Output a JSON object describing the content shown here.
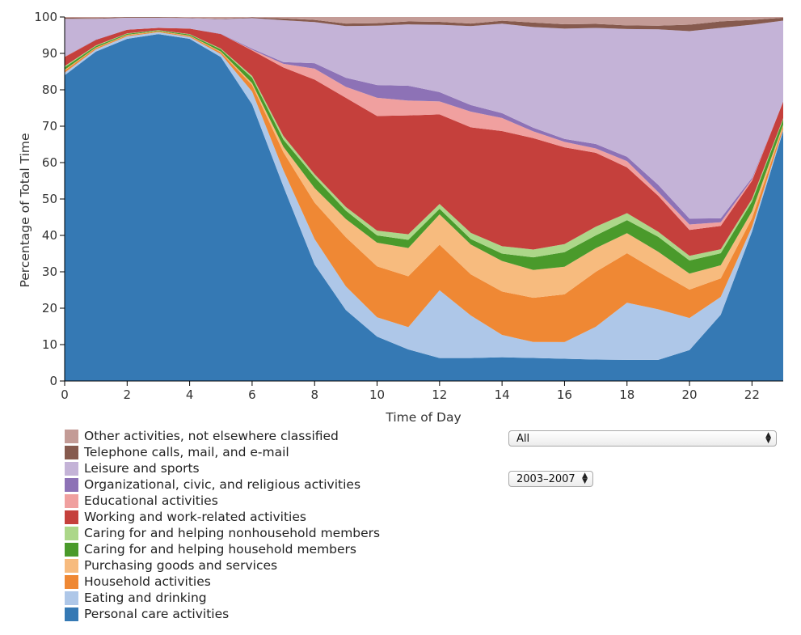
{
  "chart_data": {
    "type": "area",
    "stacked": true,
    "normalized": true,
    "xlabel": "Time of Day",
    "ylabel": "Percentage of Total Time",
    "xlim": [
      0,
      23
    ],
    "ylim": [
      0,
      100
    ],
    "x": [
      0,
      1,
      2,
      3,
      4,
      5,
      6,
      7,
      8,
      9,
      10,
      11,
      12,
      13,
      14,
      15,
      16,
      17,
      18,
      19,
      20,
      21,
      22,
      23
    ],
    "xticks": [
      "0",
      "2",
      "4",
      "6",
      "8",
      "10",
      "12",
      "14",
      "16",
      "18",
      "20",
      "22"
    ],
    "yticks": [
      "0",
      "10",
      "20",
      "30",
      "40",
      "50",
      "60",
      "70",
      "80",
      "90",
      "100"
    ],
    "series": [
      {
        "name": "Personal care activities",
        "color": "#3579b4",
        "values": [
          84,
          90.5,
          94,
          95.3,
          94,
          89,
          76,
          54,
          32,
          19.5,
          12.2,
          8.5,
          6.2,
          6.3,
          6.4,
          6.2,
          6.1,
          5.9,
          5.8,
          5.8,
          8.5,
          18.2,
          41,
          68
        ]
      },
      {
        "name": "Eating and drinking",
        "color": "#aec7e8",
        "values": [
          0.7,
          0.6,
          0.7,
          0.5,
          0.5,
          0.8,
          3.5,
          4.5,
          7,
          6.5,
          5.3,
          6,
          18.3,
          11.7,
          6,
          4.3,
          4.6,
          9,
          15.7,
          13.9,
          8.8,
          4.9,
          1.3,
          0.5
        ]
      },
      {
        "name": "Household activities",
        "color": "#ef8834",
        "values": [
          0.6,
          0.4,
          0.3,
          0.2,
          0.3,
          0.5,
          1.8,
          5,
          10,
          13.5,
          14,
          13.7,
          12.3,
          11.3,
          11.7,
          11.9,
          13.1,
          15.1,
          13.6,
          10.3,
          7.8,
          5.1,
          2.4,
          0.7
        ]
      },
      {
        "name": "Purchasing goods and services",
        "color": "#f7bb7e",
        "values": [
          0.2,
          0.1,
          0.1,
          0.1,
          0.1,
          0.2,
          0.5,
          1.5,
          4,
          5,
          6.5,
          7.6,
          8.2,
          8.2,
          8.2,
          7.5,
          7.6,
          6.5,
          5.5,
          5.5,
          4.4,
          3.6,
          1.9,
          0.5
        ]
      },
      {
        "name": "Caring for and helping household members",
        "color": "#4a9a2b",
        "values": [
          0.7,
          0.4,
          0.3,
          0.2,
          0.3,
          0.6,
          1.5,
          2,
          3,
          2.3,
          2,
          2.2,
          1.5,
          1.5,
          2,
          3.4,
          4,
          3.5,
          3.6,
          4.1,
          3.6,
          3.3,
          2.7,
          1.5
        ]
      },
      {
        "name": "Caring for and helping nonhousehold members",
        "color": "#acd789",
        "values": [
          0.3,
          0.2,
          0.1,
          0.1,
          0.1,
          0.2,
          0.5,
          1,
          0.8,
          1,
          1.3,
          1.5,
          1.3,
          1.7,
          2,
          2.1,
          2.2,
          2.4,
          1.9,
          1.4,
          1.3,
          1.1,
          0.7,
          0.3
        ]
      },
      {
        "name": "Working and work-related activities",
        "color": "#c5403c",
        "values": [
          2.5,
          1.5,
          1,
          0.6,
          1.5,
          4,
          7,
          19,
          26,
          30,
          31.5,
          32,
          24.2,
          29,
          31,
          30,
          26.6,
          20.3,
          12.6,
          9.9,
          7.1,
          6.4,
          5,
          4.5
        ]
      },
      {
        "name": "Educational activities",
        "color": "#f0a09f",
        "values": [
          0.1,
          0,
          0,
          0,
          0,
          0,
          0.2,
          1,
          3,
          3,
          5,
          4,
          3.5,
          4.3,
          3.5,
          1.8,
          1.5,
          1.2,
          1.7,
          1,
          1.5,
          1,
          0.4,
          0
        ]
      },
      {
        "name": "Organizational, civic, and religious activities",
        "color": "#8d72b6",
        "values": [
          0.1,
          0.1,
          0,
          0,
          0,
          0.1,
          0.3,
          0.5,
          1.5,
          2.5,
          3.5,
          4,
          2.5,
          1.8,
          1.3,
          1,
          0.8,
          1.2,
          1.2,
          2,
          1.6,
          1.1,
          0.4,
          0
        ]
      },
      {
        "name": "Leisure and sports",
        "color": "#c4b3d7",
        "values": [
          10.3,
          5.7,
          3.3,
          2.8,
          2.9,
          4,
          8.4,
          11.6,
          11.3,
          14.2,
          16.3,
          16.5,
          18.2,
          21.7,
          24.1,
          27.1,
          30.3,
          31.9,
          35.1,
          42.7,
          51.5,
          52.3,
          42.1,
          22
        ]
      },
      {
        "name": "Telephone calls, mail, and e-mail",
        "color": "#865a4e",
        "values": [
          0.3,
          0.2,
          0.2,
          0.2,
          0.1,
          0.1,
          0.2,
          0.5,
          0.6,
          0.7,
          0.7,
          0.8,
          0.8,
          0.7,
          0.8,
          1.2,
          1.2,
          1.1,
          1,
          1,
          1.8,
          1.8,
          1.3,
          0.8
        ]
      },
      {
        "name": "Other activities, not elsewhere classified",
        "color": "#c39b96",
        "values": [
          0.2,
          0.3,
          0,
          0,
          0.2,
          0.5,
          0.1,
          0.4,
          0.8,
          1.8,
          1.7,
          1.2,
          1.3,
          1.8,
          1,
          1.5,
          2,
          1.9,
          2.3,
          2.4,
          2.1,
          1.2,
          0.8,
          0.2
        ]
      }
    ]
  },
  "controls": {
    "activity_select": {
      "value": "All"
    },
    "year_select": {
      "value": "2003–2007"
    }
  }
}
